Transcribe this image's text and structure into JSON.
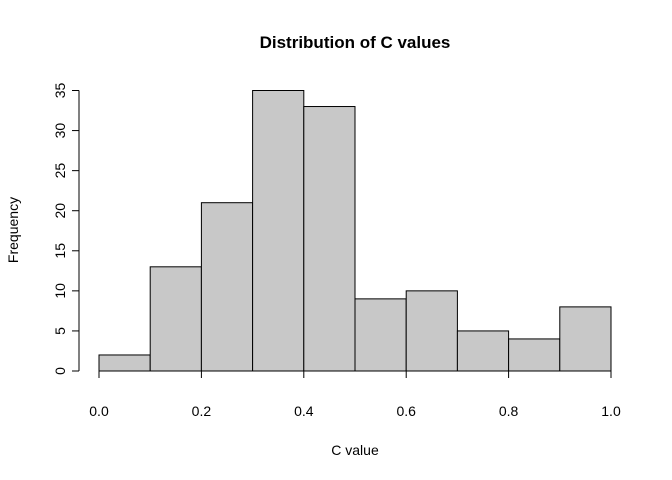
{
  "chart_data": {
    "type": "bar",
    "title": "Distribution of C values",
    "xlabel": "C value",
    "ylabel": "Frequency",
    "bins": [
      {
        "start": 0.0,
        "end": 0.1,
        "count": 2
      },
      {
        "start": 0.1,
        "end": 0.2,
        "count": 13
      },
      {
        "start": 0.2,
        "end": 0.3,
        "count": 21
      },
      {
        "start": 0.3,
        "end": 0.4,
        "count": 35
      },
      {
        "start": 0.4,
        "end": 0.5,
        "count": 33
      },
      {
        "start": 0.5,
        "end": 0.6,
        "count": 9
      },
      {
        "start": 0.6,
        "end": 0.7,
        "count": 10
      },
      {
        "start": 0.7,
        "end": 0.8,
        "count": 5
      },
      {
        "start": 0.8,
        "end": 0.9,
        "count": 4
      },
      {
        "start": 0.9,
        "end": 1.0,
        "count": 8
      }
    ],
    "xlim": [
      0,
      1
    ],
    "ylim": [
      0,
      35
    ],
    "x_ticks": [
      "0.0",
      "0.2",
      "0.4",
      "0.6",
      "0.8",
      "1.0"
    ],
    "y_ticks": [
      "0",
      "5",
      "10",
      "15",
      "20",
      "25",
      "30",
      "35"
    ],
    "bar_color": "#c8c8c8",
    "grid": false
  }
}
